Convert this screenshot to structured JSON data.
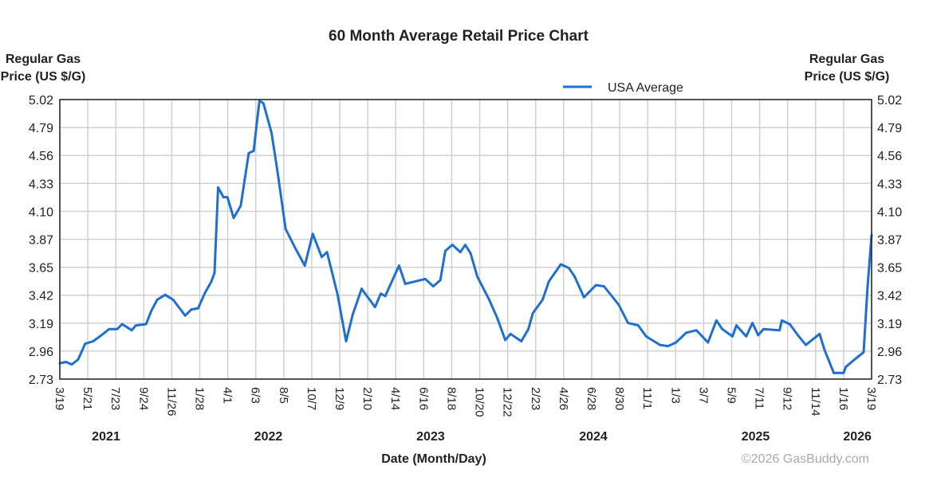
{
  "chart_data": {
    "type": "line",
    "title": "60 Month Average Retail Price Chart",
    "ylabel_left": [
      "Regular Gas",
      "Price (US $/G)"
    ],
    "ylabel_right": [
      "Regular Gas",
      "Price (US $/G)"
    ],
    "xlabel": "Date (Month/Day)",
    "credit": "©2026 GasBuddy.com",
    "ylim": [
      2.73,
      5.02
    ],
    "xlim": [
      "2021-03-19",
      "2026-03-19"
    ],
    "grid": true,
    "legend_position": "top-right",
    "y_ticks": [
      "2.73",
      "2.96",
      "3.19",
      "3.42",
      "3.65",
      "3.87",
      "4.10",
      "4.33",
      "4.56",
      "4.79",
      "5.02"
    ],
    "x_ticks": [
      "3/19",
      "5/21",
      "7/23",
      "9/24",
      "11/26",
      "1/28",
      "4/1",
      "6/3",
      "8/5",
      "10/7",
      "12/9",
      "2/10",
      "4/14",
      "6/16",
      "8/18",
      "10/20",
      "12/22",
      "2/23",
      "4/26",
      "6/28",
      "8/30",
      "11/1",
      "1/3",
      "3/7",
      "5/9",
      "7/11",
      "9/12",
      "11/14",
      "1/16",
      "3/19"
    ],
    "year_labels": [
      {
        "label": "2021",
        "date": "2021-07-01"
      },
      {
        "label": "2022",
        "date": "2022-07-01"
      },
      {
        "label": "2023",
        "date": "2023-07-01"
      },
      {
        "label": "2024",
        "date": "2024-07-01"
      },
      {
        "label": "2025",
        "date": "2025-07-01"
      },
      {
        "label": "2026",
        "date": "2026-02-15"
      }
    ],
    "series": [
      {
        "name": "USA Average",
        "color": "#1f6fd0",
        "points": [
          [
            "2021-03-19",
            2.86
          ],
          [
            "2021-04-02",
            2.87
          ],
          [
            "2021-04-15",
            2.85
          ],
          [
            "2021-04-29",
            2.89
          ],
          [
            "2021-05-15",
            3.02
          ],
          [
            "2021-06-02",
            3.04
          ],
          [
            "2021-06-17",
            3.08
          ],
          [
            "2021-07-08",
            3.14
          ],
          [
            "2021-07-26",
            3.14
          ],
          [
            "2021-08-06",
            3.18
          ],
          [
            "2021-08-28",
            3.13
          ],
          [
            "2021-09-06",
            3.17
          ],
          [
            "2021-09-29",
            3.18
          ],
          [
            "2021-10-11",
            3.29
          ],
          [
            "2021-10-24",
            3.38
          ],
          [
            "2021-11-11",
            3.42
          ],
          [
            "2021-11-29",
            3.38
          ],
          [
            "2021-12-26",
            3.25
          ],
          [
            "2022-01-09",
            3.3
          ],
          [
            "2022-01-24",
            3.31
          ],
          [
            "2022-02-09",
            3.44
          ],
          [
            "2022-02-23",
            3.53
          ],
          [
            "2022-03-02",
            3.6
          ],
          [
            "2022-03-10",
            4.3
          ],
          [
            "2022-03-22",
            4.22
          ],
          [
            "2022-03-31",
            4.22
          ],
          [
            "2022-04-14",
            4.05
          ],
          [
            "2022-04-30",
            4.15
          ],
          [
            "2022-05-18",
            4.58
          ],
          [
            "2022-05-29",
            4.6
          ],
          [
            "2022-06-11",
            5.01
          ],
          [
            "2022-06-20",
            4.99
          ],
          [
            "2022-07-08",
            4.75
          ],
          [
            "2022-07-20",
            4.47
          ],
          [
            "2022-08-09",
            3.96
          ],
          [
            "2022-08-31",
            3.8
          ],
          [
            "2022-09-21",
            3.66
          ],
          [
            "2022-10-09",
            3.92
          ],
          [
            "2022-10-29",
            3.73
          ],
          [
            "2022-11-10",
            3.77
          ],
          [
            "2022-12-04",
            3.42
          ],
          [
            "2022-12-23",
            3.04
          ],
          [
            "2023-01-07",
            3.26
          ],
          [
            "2023-01-27",
            3.47
          ],
          [
            "2023-02-26",
            3.32
          ],
          [
            "2023-03-11",
            3.43
          ],
          [
            "2023-03-21",
            3.41
          ],
          [
            "2023-04-21",
            3.66
          ],
          [
            "2023-05-05",
            3.51
          ],
          [
            "2023-05-27",
            3.53
          ],
          [
            "2023-06-19",
            3.55
          ],
          [
            "2023-07-07",
            3.49
          ],
          [
            "2023-07-23",
            3.54
          ],
          [
            "2023-08-03",
            3.78
          ],
          [
            "2023-08-19",
            3.83
          ],
          [
            "2023-09-06",
            3.77
          ],
          [
            "2023-09-17",
            3.83
          ],
          [
            "2023-09-29",
            3.76
          ],
          [
            "2023-10-14",
            3.57
          ],
          [
            "2023-11-10",
            3.38
          ],
          [
            "2023-11-28",
            3.23
          ],
          [
            "2023-12-16",
            3.05
          ],
          [
            "2023-12-28",
            3.1
          ],
          [
            "2024-01-21",
            3.04
          ],
          [
            "2024-02-06",
            3.14
          ],
          [
            "2024-02-16",
            3.27
          ],
          [
            "2024-03-09",
            3.38
          ],
          [
            "2024-03-23",
            3.53
          ],
          [
            "2024-04-19",
            3.67
          ],
          [
            "2024-05-07",
            3.64
          ],
          [
            "2024-05-20",
            3.57
          ],
          [
            "2024-06-10",
            3.4
          ],
          [
            "2024-07-07",
            3.5
          ],
          [
            "2024-07-25",
            3.49
          ],
          [
            "2024-08-27",
            3.34
          ],
          [
            "2024-09-17",
            3.19
          ],
          [
            "2024-10-10",
            3.17
          ],
          [
            "2024-10-28",
            3.08
          ],
          [
            "2024-11-28",
            3.01
          ],
          [
            "2024-12-16",
            3.0
          ],
          [
            "2025-01-03",
            3.03
          ],
          [
            "2025-01-26",
            3.11
          ],
          [
            "2025-02-18",
            3.13
          ],
          [
            "2025-03-16",
            3.03
          ],
          [
            "2025-04-04",
            3.21
          ],
          [
            "2025-04-17",
            3.14
          ],
          [
            "2025-05-10",
            3.08
          ],
          [
            "2025-05-19",
            3.17
          ],
          [
            "2025-06-10",
            3.08
          ],
          [
            "2025-06-24",
            3.19
          ],
          [
            "2025-07-07",
            3.09
          ],
          [
            "2025-07-19",
            3.14
          ],
          [
            "2025-08-24",
            3.13
          ],
          [
            "2025-08-29",
            3.21
          ],
          [
            "2025-09-16",
            3.18
          ],
          [
            "2025-10-04",
            3.09
          ],
          [
            "2025-10-22",
            3.01
          ],
          [
            "2025-11-15",
            3.08
          ],
          [
            "2025-11-22",
            3.1
          ],
          [
            "2025-12-03",
            2.97
          ],
          [
            "2025-12-24",
            2.78
          ],
          [
            "2026-01-15",
            2.78
          ],
          [
            "2026-01-20",
            2.83
          ],
          [
            "2026-02-12",
            2.9
          ],
          [
            "2026-03-01",
            2.95
          ],
          [
            "2026-03-10",
            3.49
          ],
          [
            "2026-03-19",
            3.91
          ]
        ]
      }
    ]
  }
}
